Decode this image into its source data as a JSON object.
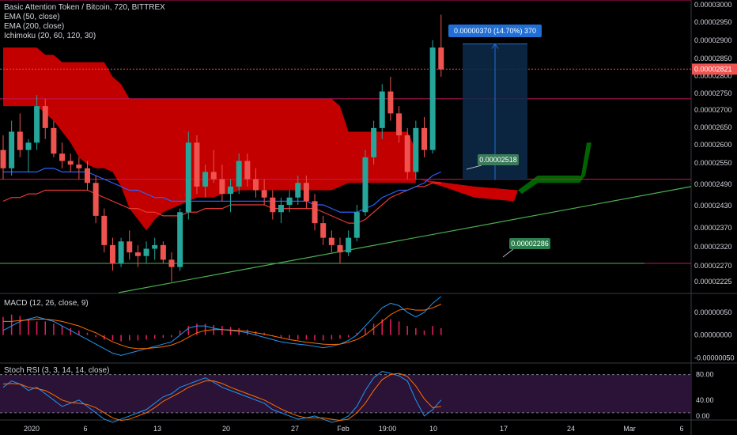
{
  "header": {
    "title": "Basic Attention Token / Bitcoin, 720, BITTREX",
    "indicators": [
      "EMA (50, close)",
      "EMA (200, close)",
      "Ichimoku (20, 60, 120, 30)"
    ]
  },
  "macd_pane": {
    "title": "MACD (12, 26, close, 9)"
  },
  "stoch_pane": {
    "title": "Stoch RSI (3, 3, 14, 14, close)"
  },
  "colors": {
    "up": "#26a69a",
    "down": "#ef5350",
    "cloud_red": "#cc0000",
    "cloud_green": "#006400",
    "ema50": "#2962ff",
    "ema200": "#e53935",
    "magenta": "#c2185b",
    "trend": "#4caf50",
    "measure": "#1f6fd6",
    "price_tag": "#ef5350"
  },
  "chart_data": {
    "type": "candlestick",
    "price_axis": {
      "ticks": [
        "0.00003000",
        "0.00002950",
        "0.00002900",
        "0.00002850",
        "0.00002800",
        "0.00002750",
        "0.00002700",
        "0.00002650",
        "0.00002600",
        "0.00002550",
        "0.00002490",
        "0.00002430",
        "0.00002370",
        "0.00002320",
        "0.00002270",
        "0.00002225"
      ],
      "current_price": "0.00002821",
      "range": [
        2.21e-05,
        3.01e-05
      ]
    },
    "time_axis": {
      "labels": [
        "2020",
        "6",
        "13",
        "20",
        "27",
        "Feb",
        "19:00",
        "10",
        "17",
        "24",
        "Mar",
        "6"
      ]
    },
    "candles": [
      [
        2.6e-05,
        2.64e-05,
        2.52e-05,
        2.55e-05
      ],
      [
        2.55e-05,
        2.68e-05,
        2.53e-05,
        2.65e-05
      ],
      [
        2.65e-05,
        2.7e-05,
        2.58e-05,
        2.6e-05
      ],
      [
        2.6e-05,
        2.63e-05,
        2.54e-05,
        2.62e-05
      ],
      [
        2.62e-05,
        2.75e-05,
        2.6e-05,
        2.72e-05
      ],
      [
        2.72e-05,
        2.74e-05,
        2.63e-05,
        2.66e-05
      ],
      [
        2.66e-05,
        2.68e-05,
        2.58e-05,
        2.59e-05
      ],
      [
        2.59e-05,
        2.62e-05,
        2.55e-05,
        2.57e-05
      ],
      [
        2.57e-05,
        2.59e-05,
        2.54e-05,
        2.56e-05
      ],
      [
        2.56e-05,
        2.58e-05,
        2.52e-05,
        2.55e-05
      ],
      [
        2.55e-05,
        2.57e-05,
        2.49e-05,
        2.51e-05
      ],
      [
        2.51e-05,
        2.53e-05,
        2.4e-05,
        2.42e-05
      ],
      [
        2.42e-05,
        2.44e-05,
        2.32e-05,
        2.34e-05
      ],
      [
        2.34e-05,
        2.36e-05,
        2.27e-05,
        2.29e-05
      ],
      [
        2.29e-05,
        2.36e-05,
        2.28e-05,
        2.35e-05
      ],
      [
        2.35e-05,
        2.38e-05,
        2.3e-05,
        2.32e-05
      ],
      [
        2.32e-05,
        2.34e-05,
        2.28e-05,
        2.31e-05
      ],
      [
        2.31e-05,
        2.35e-05,
        2.29e-05,
        2.33e-05
      ],
      [
        2.33e-05,
        2.36e-05,
        2.3e-05,
        2.34e-05
      ],
      [
        2.34e-05,
        2.35e-05,
        2.29e-05,
        2.3e-05
      ],
      [
        2.3e-05,
        2.32e-05,
        2.24e-05,
        2.28e-05
      ],
      [
        2.28e-05,
        2.44e-05,
        2.27e-05,
        2.43e-05
      ],
      [
        2.43e-05,
        2.65e-05,
        2.41e-05,
        2.62e-05
      ],
      [
        2.62e-05,
        2.64e-05,
        2.48e-05,
        2.5e-05
      ],
      [
        2.5e-05,
        2.56e-05,
        2.47e-05,
        2.54e-05
      ],
      [
        2.54e-05,
        2.6e-05,
        2.51e-05,
        2.52e-05
      ],
      [
        2.52e-05,
        2.56e-05,
        2.46e-05,
        2.48e-05
      ],
      [
        2.48e-05,
        2.52e-05,
        2.43e-05,
        2.5e-05
      ],
      [
        2.5e-05,
        2.59e-05,
        2.48e-05,
        2.57e-05
      ],
      [
        2.57e-05,
        2.59e-05,
        2.5e-05,
        2.52e-05
      ],
      [
        2.52e-05,
        2.55e-05,
        2.47e-05,
        2.49e-05
      ],
      [
        2.49e-05,
        2.52e-05,
        2.45e-05,
        2.47e-05
      ],
      [
        2.47e-05,
        2.49e-05,
        2.41e-05,
        2.43e-05
      ],
      [
        2.43e-05,
        2.47e-05,
        2.4e-05,
        2.45e-05
      ],
      [
        2.45e-05,
        2.49e-05,
        2.43e-05,
        2.47e-05
      ],
      [
        2.47e-05,
        2.53e-05,
        2.45e-05,
        2.51e-05
      ],
      [
        2.51e-05,
        2.53e-05,
        2.44e-05,
        2.46e-05
      ],
      [
        2.46e-05,
        2.48e-05,
        2.38e-05,
        2.4e-05
      ],
      [
        2.4e-05,
        2.42e-05,
        2.34e-05,
        2.36e-05
      ],
      [
        2.36e-05,
        2.38e-05,
        2.32e-05,
        2.34e-05
      ],
      [
        2.34e-05,
        2.36e-05,
        2.29e-05,
        2.32e-05
      ],
      [
        2.32e-05,
        2.38e-05,
        2.31e-05,
        2.36e-05
      ],
      [
        2.36e-05,
        2.45e-05,
        2.35e-05,
        2.43e-05
      ],
      [
        2.43e-05,
        2.6e-05,
        2.42e-05,
        2.58e-05
      ],
      [
        2.58e-05,
        2.68e-05,
        2.56e-05,
        2.66e-05
      ],
      [
        2.66e-05,
        2.78e-05,
        2.63e-05,
        2.76e-05
      ],
      [
        2.76e-05,
        2.8e-05,
        2.68e-05,
        2.7e-05
      ],
      [
        2.7e-05,
        2.72e-05,
        2.62e-05,
        2.64e-05
      ],
      [
        2.64e-05,
        2.66e-05,
        2.52e-05,
        2.54e-05
      ],
      [
        2.54e-05,
        2.68e-05,
        2.52e-05,
        2.66e-05
      ],
      [
        2.66e-05,
        2.69e-05,
        2.58e-05,
        2.6e-05
      ],
      [
        2.6e-05,
        2.9e-05,
        2.59e-05,
        2.88e-05
      ],
      [
        2.88e-05,
        2.97e-05,
        2.8e-05,
        2.82e-05
      ]
    ],
    "ema50": [
      2.54e-05,
      2.54e-05,
      2.54e-05,
      2.54e-05,
      2.54e-05,
      2.55e-05,
      2.55e-05,
      2.54e-05,
      2.54e-05,
      2.54e-05,
      2.54e-05,
      2.53e-05,
      2.52e-05,
      2.51e-05,
      2.5e-05,
      2.49e-05,
      2.49e-05,
      2.48e-05,
      2.47e-05,
      2.47e-05,
      2.46e-05,
      2.46e-05,
      2.46e-05,
      2.46e-05,
      2.46e-05,
      2.46e-05,
      2.46e-05,
      2.46e-05,
      2.46e-05,
      2.46e-05,
      2.46e-05,
      2.46e-05,
      2.46e-05,
      2.46e-05,
      2.46e-05,
      2.46e-05,
      2.46e-05,
      2.45e-05,
      2.45e-05,
      2.44e-05,
      2.43e-05,
      2.43e-05,
      2.43e-05,
      2.44e-05,
      2.45e-05,
      2.47e-05,
      2.48e-05,
      2.49e-05,
      2.49e-05,
      2.5e-05,
      2.51e-05,
      2.53e-05,
      2.54e-05
    ],
    "ema200": [
      2.46e-05,
      2.47e-05,
      2.47e-05,
      2.48e-05,
      2.48e-05,
      2.49e-05,
      2.49e-05,
      2.49e-05,
      2.49e-05,
      2.49e-05,
      2.49e-05,
      2.48e-05,
      2.47e-05,
      2.46e-05,
      2.45e-05,
      2.44e-05,
      2.44e-05,
      2.43e-05,
      2.43e-05,
      2.42e-05,
      2.42e-05,
      2.42e-05,
      2.43e-05,
      2.43e-05,
      2.44e-05,
      2.44e-05,
      2.44e-05,
      2.45e-05,
      2.45e-05,
      2.45e-05,
      2.45e-05,
      2.45e-05,
      2.44e-05,
      2.44e-05,
      2.44e-05,
      2.44e-05,
      2.44e-05,
      2.44e-05,
      2.43e-05,
      2.42e-05,
      2.41e-05,
      2.4e-05,
      2.4e-05,
      2.41e-05,
      2.43e-05,
      2.45e-05,
      2.47e-05,
      2.48e-05,
      2.49e-05,
      2.5e-05,
      2.5e-05,
      2.51e-05,
      2.51e-05
    ],
    "levels": {
      "magenta_top": 3.01e-05,
      "current_line": 2.821e-05,
      "magenta_mid": 2.74e-05,
      "magenta_low": 2.52e-05,
      "support_green": 2.29e-05
    },
    "measure": {
      "label": "0.00000370 (14.70%) 370",
      "from": 2.518e-05,
      "to": 2.89e-05
    },
    "annotations": [
      {
        "text": "0.00002518",
        "price": 2.518e-05
      },
      {
        "text": "0.00002286",
        "price": 2.286e-05
      }
    ],
    "macd": {
      "ticks": [
        "0.00000050",
        "0.00000000",
        "-0.00000050"
      ],
      "histogram": [
        4e-07,
        4.5e-07,
        4.2e-07,
        3.5e-07,
        3e-07,
        3e-07,
        2.5e-07,
        2e-07,
        1.5e-07,
        1e-07,
        5e-08,
        -5e-08,
        -1e-07,
        -1.2e-07,
        -1.4e-07,
        -1.2e-07,
        -1.2e-07,
        -1e-07,
        -8e-08,
        -6e-08,
        -5e-08,
        1e-07,
        2e-07,
        2.5e-07,
        2.5e-07,
        2.2e-07,
        2e-07,
        1.8e-07,
        1.5e-07,
        1.2e-07,
        8e-08,
        5e-08,
        -2e-08,
        -5e-08,
        -8e-08,
        -1e-07,
        -1e-07,
        -1.2e-07,
        -1.2e-07,
        -1e-07,
        -8e-08,
        -5e-08,
        5e-08,
        1.5e-07,
        2.5e-07,
        3.5e-07,
        3.5e-07,
        3e-07,
        2e-07,
        1.5e-07,
        1e-07,
        2e-07,
        1.5e-07
      ],
      "macd_line": [
        1e-07,
        2e-07,
        3e-07,
        3.5e-07,
        4e-07,
        3.5e-07,
        3e-07,
        2e-07,
        1e-07,
        0.0,
        -1e-07,
        -2e-07,
        -3e-07,
        -4e-07,
        -4.5e-07,
        -4e-07,
        -3.5e-07,
        -3e-07,
        -2.5e-07,
        -2e-07,
        -1.5e-07,
        0.0,
        1.5e-07,
        2e-07,
        2e-07,
        1.5e-07,
        1.2e-07,
        1e-07,
        8e-08,
        5e-08,
        0.0,
        -5e-08,
        -1e-07,
        -1.5e-07,
        -1.8e-07,
        -2e-07,
        -2.2e-07,
        -2.5e-07,
        -2.8e-07,
        -2.5e-07,
        -2e-07,
        -1.2e-07,
        0.0,
        2e-07,
        4e-07,
        6e-07,
        7e-07,
        6.5e-07,
        5e-07,
        4e-07,
        5e-07,
        7e-07,
        8.5e-07
      ],
      "signal_line": [
        3e-07,
        3e-07,
        3.2e-07,
        3.3e-07,
        3.5e-07,
        3.5e-07,
        3.3e-07,
        3e-07,
        2.5e-07,
        2e-07,
        1.2e-07,
        5e-08,
        -5e-08,
        -1.5e-07,
        -2.2e-07,
        -2.8e-07,
        -3e-07,
        -3e-07,
        -2.8e-07,
        -2.6e-07,
        -2.2e-07,
        -1.5e-07,
        -5e-08,
        5e-08,
        1e-07,
        1.2e-07,
        1.2e-07,
        1.1e-07,
        1e-07,
        8e-08,
        5e-08,
        2e-08,
        -2e-08,
        -6e-08,
        -1e-07,
        -1.3e-07,
        -1.6e-07,
        -1.8e-07,
        -2e-07,
        -2.1e-07,
        -2e-07,
        -1.6e-07,
        -1e-07,
        0.0,
        1.5e-07,
        3e-07,
        4.5e-07,
        5.5e-07,
        5.8e-07,
        5.5e-07,
        5.5e-07,
        6e-07,
        6.8e-07
      ]
    },
    "stoch": {
      "ticks": [
        "80.00",
        "40.00",
        "0.00"
      ],
      "k": [
        60,
        70,
        65,
        55,
        60,
        50,
        40,
        30,
        35,
        40,
        30,
        20,
        10,
        5,
        10,
        15,
        20,
        25,
        35,
        45,
        50,
        60,
        65,
        70,
        75,
        68,
        60,
        55,
        50,
        45,
        40,
        35,
        25,
        20,
        15,
        10,
        12,
        15,
        10,
        5,
        8,
        15,
        30,
        55,
        75,
        85,
        82,
        78,
        70,
        40,
        15,
        25,
        40
      ],
      "d": [
        65,
        66,
        65,
        60,
        58,
        55,
        48,
        40,
        36,
        35,
        33,
        28,
        20,
        12,
        8,
        10,
        15,
        20,
        28,
        38,
        45,
        52,
        60,
        65,
        70,
        70,
        66,
        60,
        55,
        50,
        45,
        40,
        33,
        26,
        20,
        15,
        12,
        12,
        12,
        10,
        8,
        10,
        20,
        35,
        55,
        72,
        80,
        82,
        77,
        62,
        42,
        28,
        30
      ]
    }
  }
}
